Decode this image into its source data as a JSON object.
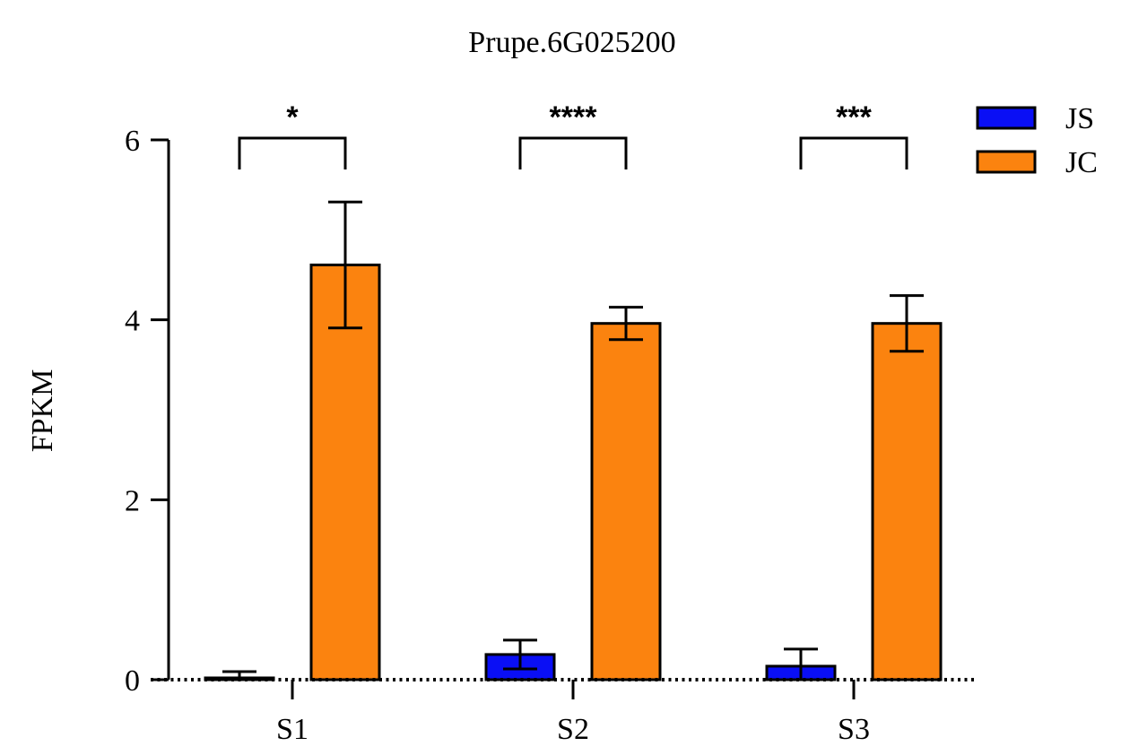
{
  "chart_data": {
    "type": "bar",
    "title": "Prupe.6G025200",
    "xlabel": "",
    "ylabel": "FPKM",
    "categories": [
      "S1",
      "S2",
      "S3"
    ],
    "ylim": [
      0,
      6
    ],
    "yticks": [
      "0",
      "2",
      "4",
      "6"
    ],
    "grid": false,
    "legend_position": "top-right",
    "series": [
      {
        "name": "JS",
        "color": "#0a0ff5",
        "values": [
          0.02,
          0.28,
          0.15
        ],
        "errors": [
          0.07,
          0.16,
          0.19
        ]
      },
      {
        "name": "JC",
        "color": "#fb830f",
        "values": [
          4.61,
          3.96,
          3.96
        ],
        "errors": [
          0.7,
          0.18,
          0.31
        ]
      }
    ],
    "significance": [
      "*",
      "****",
      "***"
    ]
  }
}
